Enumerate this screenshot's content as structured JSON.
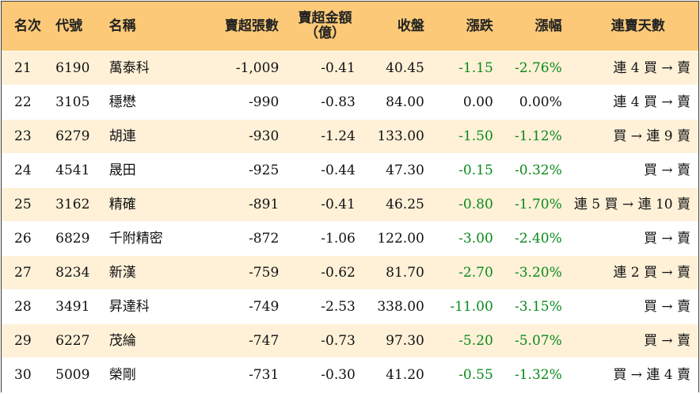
{
  "header": {
    "rank": "名次",
    "code": "代號",
    "name": "名稱",
    "sell_volume": "賣超張數",
    "sell_amount_line1": "賣超金額",
    "sell_amount_line2": "（億）",
    "close": "收盤",
    "change": "漲跌",
    "change_pct": "漲幅",
    "consecutive_days": "連賣天數"
  },
  "rows": [
    {
      "rank": "21",
      "code": "6190",
      "name": "萬泰科",
      "vol": "-1,009",
      "amt": "-0.41",
      "close": "40.45",
      "chg": "-1.15",
      "pct": "-2.76%",
      "days": "連 4 買 → 賣",
      "color": "green"
    },
    {
      "rank": "22",
      "code": "3105",
      "name": "穩懋",
      "vol": "-990",
      "amt": "-0.83",
      "close": "84.00",
      "chg": "0.00",
      "pct": "0.00%",
      "days": "連 4 買 → 賣",
      "color": "flat"
    },
    {
      "rank": "23",
      "code": "6279",
      "name": "胡連",
      "vol": "-930",
      "amt": "-1.24",
      "close": "133.00",
      "chg": "-1.50",
      "pct": "-1.12%",
      "days": "買 → 連 9 賣",
      "color": "green"
    },
    {
      "rank": "24",
      "code": "4541",
      "name": "晟田",
      "vol": "-925",
      "amt": "-0.44",
      "close": "47.30",
      "chg": "-0.15",
      "pct": "-0.32%",
      "days": "買 → 賣",
      "color": "green"
    },
    {
      "rank": "25",
      "code": "3162",
      "name": "精確",
      "vol": "-891",
      "amt": "-0.41",
      "close": "46.25",
      "chg": "-0.80",
      "pct": "-1.70%",
      "days": "連 5 買 → 連 10 賣",
      "color": "green"
    },
    {
      "rank": "26",
      "code": "6829",
      "name": "千附精密",
      "vol": "-872",
      "amt": "-1.06",
      "close": "122.00",
      "chg": "-3.00",
      "pct": "-2.40%",
      "days": "買 → 賣",
      "color": "green"
    },
    {
      "rank": "27",
      "code": "8234",
      "name": "新漢",
      "vol": "-759",
      "amt": "-0.62",
      "close": "81.70",
      "chg": "-2.70",
      "pct": "-3.20%",
      "days": "連 2 買 → 賣",
      "color": "green"
    },
    {
      "rank": "28",
      "code": "3491",
      "name": "昇達科",
      "vol": "-749",
      "amt": "-2.53",
      "close": "338.00",
      "chg": "-11.00",
      "pct": "-3.15%",
      "days": "買 → 賣",
      "color": "green"
    },
    {
      "rank": "29",
      "code": "6227",
      "name": "茂綸",
      "vol": "-747",
      "amt": "-0.73",
      "close": "97.30",
      "chg": "-5.20",
      "pct": "-5.07%",
      "days": "買 → 賣",
      "color": "green"
    },
    {
      "rank": "30",
      "code": "5009",
      "name": "榮剛",
      "vol": "-731",
      "amt": "-0.30",
      "close": "41.20",
      "chg": "-0.55",
      "pct": "-1.32%",
      "days": "買 → 連 4 賣",
      "color": "green"
    }
  ]
}
